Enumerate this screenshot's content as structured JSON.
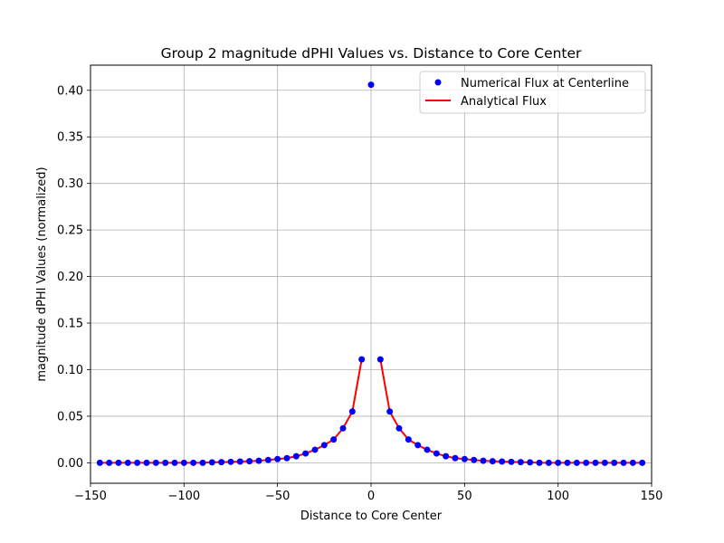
{
  "chart_data": {
    "type": "line",
    "title": "Group 2 magnitude dPHI Values vs. Distance to Core Center",
    "xlabel": "Distance to Core Center",
    "ylabel": "magnitude dPHI Values (normalized)",
    "xlim": [
      -150,
      150
    ],
    "ylim": [
      -0.022,
      0.427
    ],
    "xticks": [
      -150,
      -100,
      -50,
      0,
      50,
      100,
      150
    ],
    "xtick_labels": [
      "−150",
      "−100",
      "−50",
      "0",
      "50",
      "100",
      "150"
    ],
    "yticks": [
      0.0,
      0.05,
      0.1,
      0.15,
      0.2,
      0.25,
      0.3,
      0.35,
      0.4
    ],
    "ytick_labels": [
      "0.00",
      "0.05",
      "0.10",
      "0.15",
      "0.20",
      "0.25",
      "0.30",
      "0.35",
      "0.40"
    ],
    "grid": true,
    "legend_position": "top-right",
    "series": [
      {
        "name": "Numerical Flux at Centerline",
        "style": "markers",
        "color": "#0000ff",
        "x": [
          -145,
          -140,
          -135,
          -130,
          -125,
          -120,
          -115,
          -110,
          -105,
          -100,
          -95,
          -90,
          -85,
          -80,
          -75,
          -70,
          -65,
          -60,
          -55,
          -50,
          -45,
          -40,
          -35,
          -30,
          -25,
          -20,
          -15,
          -10,
          -5,
          0,
          5,
          10,
          15,
          20,
          25,
          30,
          35,
          40,
          45,
          50,
          55,
          60,
          65,
          70,
          75,
          80,
          85,
          90,
          95,
          100,
          105,
          110,
          115,
          120,
          125,
          130,
          135,
          140,
          145
        ],
        "y": [
          0.0,
          0.0,
          0.0,
          0.0,
          0.0,
          0.0,
          0.0,
          0.0,
          0.0,
          0.0,
          0.0,
          0.0,
          0.0005,
          0.0007,
          0.001,
          0.0013,
          0.0017,
          0.0022,
          0.003,
          0.004,
          0.005,
          0.007,
          0.01,
          0.014,
          0.019,
          0.025,
          0.037,
          0.055,
          0.111,
          0.406,
          0.111,
          0.055,
          0.037,
          0.025,
          0.019,
          0.014,
          0.01,
          0.007,
          0.005,
          0.004,
          0.003,
          0.0022,
          0.0017,
          0.0013,
          0.001,
          0.0007,
          0.0005,
          0.0,
          0.0,
          0.0,
          0.0,
          0.0,
          0.0,
          0.0,
          0.0,
          0.0,
          0.0,
          0.0,
          0.0
        ]
      },
      {
        "name": "Analytical Flux",
        "style": "line",
        "color": "#ff0000",
        "segments": [
          {
            "x": [
              -145,
              -140,
              -135,
              -130,
              -125,
              -120,
              -115,
              -110,
              -105,
              -100,
              -95,
              -90,
              -85,
              -80,
              -75,
              -70,
              -65,
              -60,
              -55,
              -50,
              -45,
              -40,
              -35,
              -30,
              -25,
              -20,
              -15,
              -10,
              -5
            ],
            "y": [
              0.0,
              0.0,
              0.0,
              0.0,
              0.0,
              0.0,
              0.0,
              0.0,
              0.0,
              0.0,
              0.0,
              0.0,
              0.0005,
              0.0007,
              0.001,
              0.0013,
              0.0017,
              0.0022,
              0.003,
              0.004,
              0.005,
              0.007,
              0.01,
              0.014,
              0.019,
              0.025,
              0.037,
              0.055,
              0.111
            ]
          },
          {
            "x": [
              5,
              10,
              15,
              20,
              25,
              30,
              35,
              40,
              45,
              50,
              55,
              60,
              65,
              70,
              75,
              80,
              85,
              90,
              95,
              100,
              105,
              110,
              115,
              120,
              125,
              130,
              135,
              140,
              145
            ],
            "y": [
              0.111,
              0.055,
              0.037,
              0.025,
              0.019,
              0.014,
              0.01,
              0.007,
              0.005,
              0.004,
              0.003,
              0.0022,
              0.0017,
              0.0013,
              0.001,
              0.0007,
              0.0005,
              0.0,
              0.0,
              0.0,
              0.0,
              0.0,
              0.0,
              0.0,
              0.0,
              0.0,
              0.0,
              0.0,
              0.0
            ]
          }
        ]
      }
    ]
  }
}
